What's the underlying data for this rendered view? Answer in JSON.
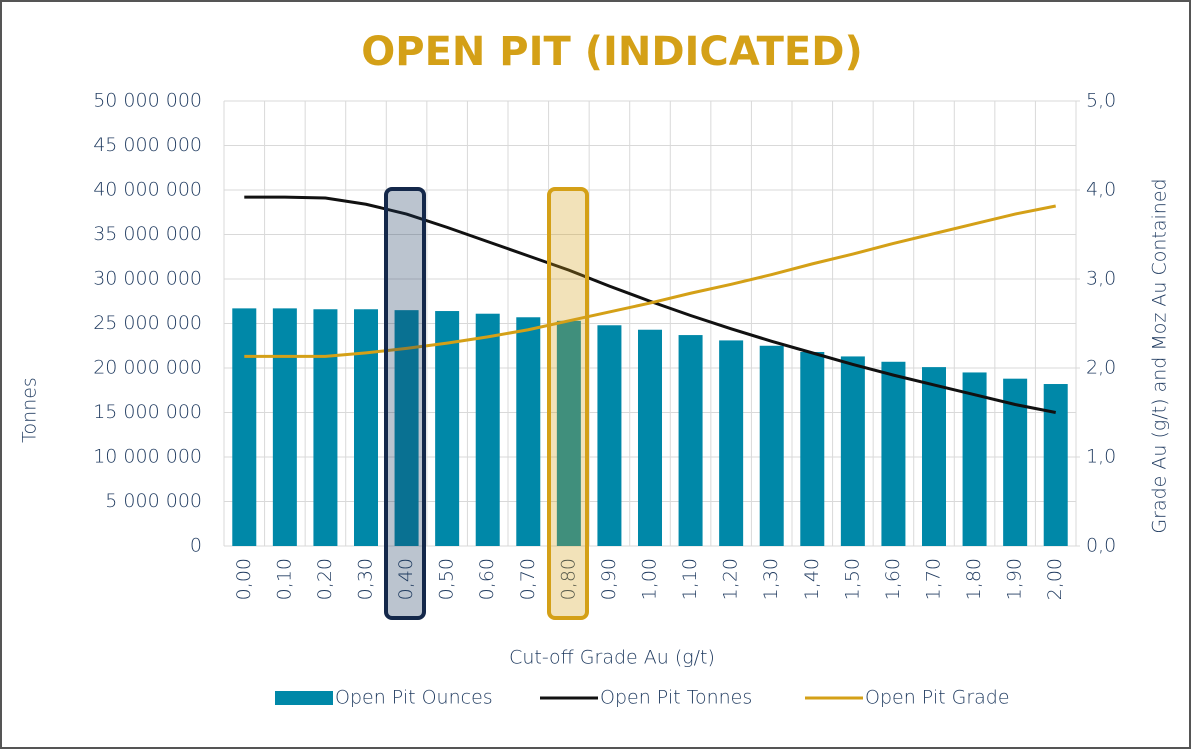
{
  "chart_data": {
    "type": "bar-line",
    "title": "OPEN PIT (INDICATED)",
    "x_label": "Cut-off Grade Au (g/t)",
    "y_label": "Tonnes",
    "y2_label": "Grade Au (g/t) and Moz Au Contained",
    "categories": [
      "0,00",
      "0,10",
      "0,20",
      "0,30",
      "0,40",
      "0,50",
      "0,60",
      "0,70",
      "0,80",
      "0,90",
      "1,00",
      "1,10",
      "1,20",
      "1,30",
      "1,40",
      "1,50",
      "1,60",
      "1,70",
      "1,80",
      "1,90",
      "2,00"
    ],
    "series": [
      {
        "name": "Open Pit Ounces",
        "kind": "bar",
        "axis": "y2",
        "color": "#0088a8",
        "values": [
          2.67,
          2.67,
          2.66,
          2.66,
          2.65,
          2.64,
          2.61,
          2.57,
          2.53,
          2.48,
          2.43,
          2.37,
          2.31,
          2.25,
          2.18,
          2.13,
          2.07,
          2.01,
          1.95,
          1.88,
          1.82
        ]
      },
      {
        "name": "Open Pit Tonnes",
        "kind": "line",
        "axis": "y",
        "color": "#111111",
        "values": [
          39200000,
          39200000,
          39100000,
          38400000,
          37300000,
          35800000,
          34200000,
          32600000,
          31000000,
          29200000,
          27500000,
          25900000,
          24400000,
          23000000,
          21700000,
          20400000,
          19200000,
          18100000,
          17000000,
          15900000,
          15000000
        ]
      },
      {
        "name": "Open Pit Grade",
        "kind": "line",
        "axis": "y2",
        "color": "#d4a017",
        "values": [
          2.13,
          2.13,
          2.13,
          2.17,
          2.22,
          2.28,
          2.35,
          2.43,
          2.53,
          2.63,
          2.73,
          2.84,
          2.94,
          3.05,
          3.17,
          3.28,
          3.4,
          3.51,
          3.62,
          3.73,
          3.82
        ]
      }
    ],
    "ylim": [
      0,
      50000000
    ],
    "yticks": [
      0,
      {
        "value": 5000000,
        "label": "5 000 000"
      },
      {
        "value": 10000000,
        "label": "10 000 000"
      },
      {
        "value": 15000000,
        "label": "15 000 000"
      },
      {
        "value": 20000000,
        "label": "20 000 000"
      },
      {
        "value": 25000000,
        "label": "25 000 000"
      },
      {
        "value": 30000000,
        "label": "30 000 000"
      },
      {
        "value": 35000000,
        "label": "35 000 000"
      },
      {
        "value": 40000000,
        "label": "40 000 000"
      },
      {
        "value": 45000000,
        "label": "45 000 000"
      },
      {
        "value": 50000000,
        "label": "50 000 000"
      }
    ],
    "y2lim": [
      0,
      5
    ],
    "y2ticks": [
      {
        "value": 0,
        "label": "0,0"
      },
      {
        "value": 1,
        "label": "1,0"
      },
      {
        "value": 2,
        "label": "2,0"
      },
      {
        "value": 3,
        "label": "3,0"
      },
      {
        "value": 4,
        "label": "4,0"
      },
      {
        "value": 5,
        "label": "5,0"
      }
    ],
    "grid": true,
    "legend": "bottom"
  }
}
